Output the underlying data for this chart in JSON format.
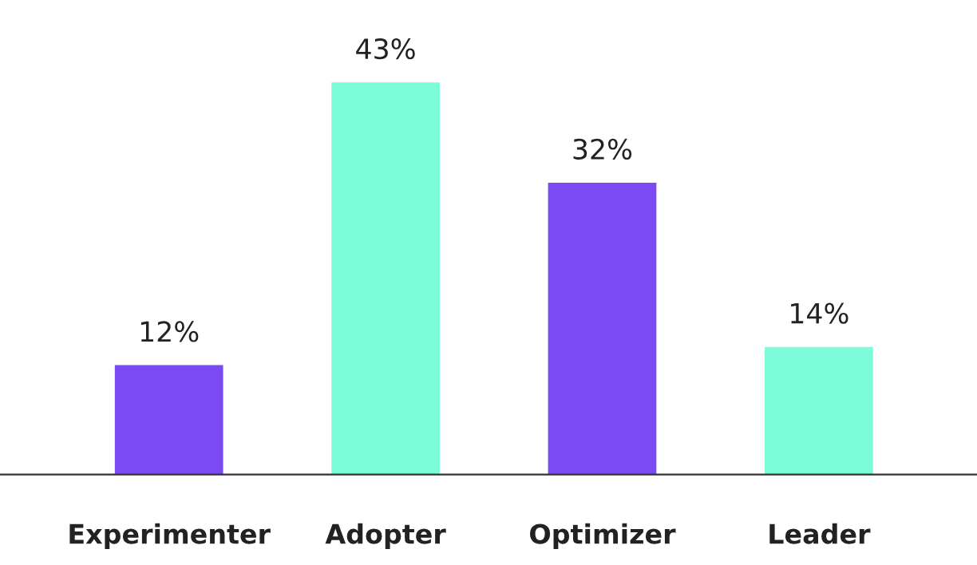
{
  "chart_data": {
    "type": "bar",
    "categories": [
      "Experimenter",
      "Adopter",
      "Optimizer",
      "Leader"
    ],
    "values": [
      12,
      43,
      32,
      14
    ],
    "colors": [
      "#7b4af2",
      "#7dfcda",
      "#7b4af2",
      "#7dfcda"
    ],
    "value_labels": [
      "12%",
      "43%",
      "32%",
      "14%"
    ],
    "grid": false,
    "legend": false
  }
}
